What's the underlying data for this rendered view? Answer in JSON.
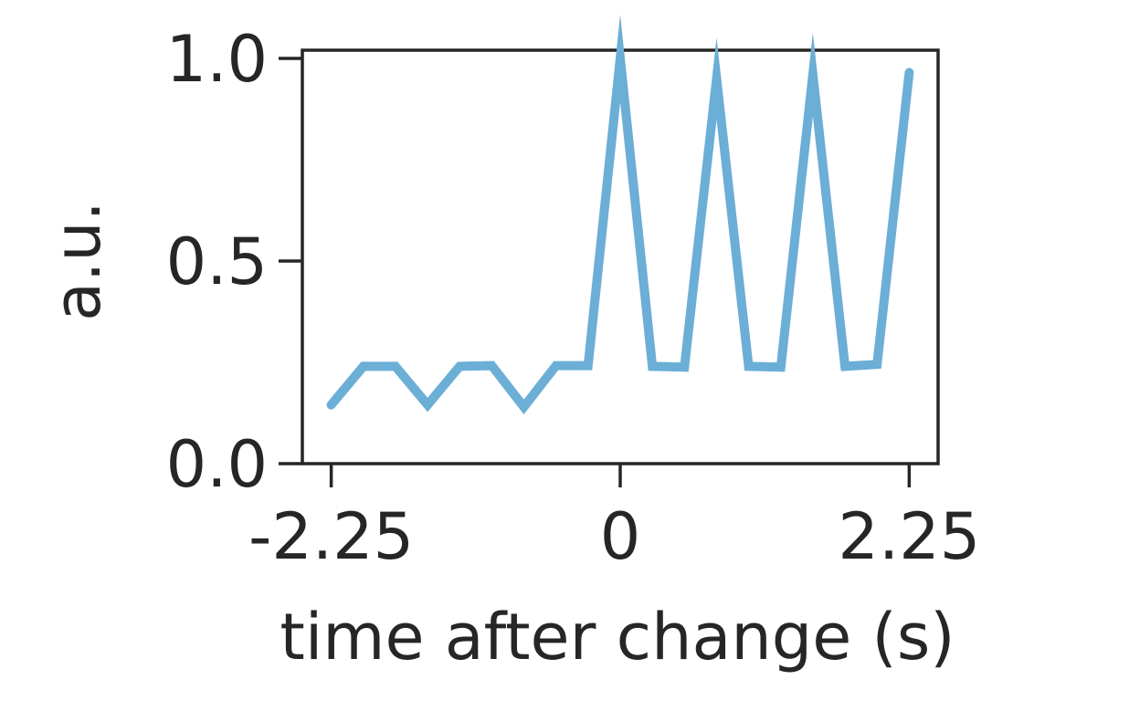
{
  "chart_data": {
    "type": "line",
    "title": "",
    "xlabel": "time after change (s)",
    "ylabel": "a.u.",
    "xlim": [
      -2.475,
      2.475
    ],
    "ylim": [
      0.0,
      1.0
    ],
    "grid": false,
    "legend": "none",
    "x_ticks": [
      -2.25,
      0,
      2.25
    ],
    "x_tick_labels": [
      "-2.25",
      "0",
      "2.25"
    ],
    "y_ticks": [
      0.0,
      0.5,
      1.0
    ],
    "y_tick_labels": [
      "0.0",
      "0.5",
      "1.0"
    ],
    "colors": {
      "line": "#6baed6",
      "axes": "#262626",
      "text": "#262626"
    },
    "series": [
      {
        "x": [
          -2.25,
          -2.0,
          -1.75,
          -1.5,
          -1.25,
          -1.0,
          -0.75,
          -0.5,
          -0.25,
          0.0,
          0.25,
          0.5,
          0.75,
          1.0,
          1.25,
          1.5,
          1.75,
          2.0,
          2.25
        ],
        "values": [
          0.145,
          0.24,
          0.24,
          0.145,
          0.24,
          0.242,
          0.14,
          0.242,
          0.242,
          1.0,
          0.24,
          0.238,
          0.95,
          0.24,
          0.238,
          0.96,
          0.24,
          0.245,
          0.965
        ]
      }
    ]
  }
}
